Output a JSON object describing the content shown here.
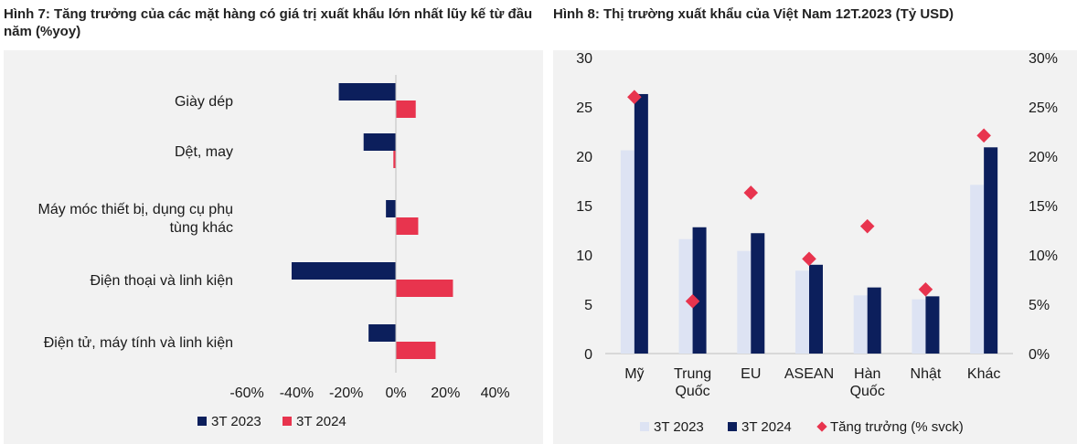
{
  "figure1": {
    "title": "Hình 7: Tăng trưởng của các mặt hàng có giá trị xuất khẩu lớn nhất lũy kế từ đầu năm (%yoy)",
    "chart_data": {
      "type": "bar",
      "orientation": "horizontal",
      "categories": [
        [
          "Giày dép"
        ],
        [
          "Dệt, may"
        ],
        [
          "Máy móc thiết bị, dụng cụ phụ",
          "tùng khác"
        ],
        [
          "Điện thoại và linh kiện"
        ],
        [
          "Điện tử, máy tính và linh kiện"
        ]
      ],
      "series": [
        {
          "name": "3T 2023",
          "color": "#0c1f5c",
          "values": [
            -23,
            -13,
            -4,
            -42,
            -11
          ]
        },
        {
          "name": "3T 2024",
          "color": "#e8344e",
          "values": [
            8,
            -1,
            9,
            23,
            16
          ]
        }
      ],
      "xlim": [
        -60,
        40
      ],
      "xticks": [
        -60,
        -40,
        -20,
        0,
        20,
        40
      ],
      "xtick_labels": [
        "-60%",
        "-40%",
        "-20%",
        "0%",
        "20%",
        "40%"
      ],
      "legend_position": "bottom-left"
    }
  },
  "figure2": {
    "title": "Hình 8: Thị trường xuất khẩu của Việt Nam 12T.2023 (Tỷ USD)",
    "chart_data": {
      "type": "bar",
      "categories": [
        [
          "Mỹ"
        ],
        [
          "Trung",
          "Quốc"
        ],
        [
          "EU"
        ],
        [
          "ASEAN"
        ],
        [
          "Hàn",
          "Quốc"
        ],
        [
          "Nhật"
        ],
        [
          "Khác"
        ]
      ],
      "series": [
        {
          "name": "3T 2023",
          "color": "#dde3f3",
          "values": [
            20.6,
            11.6,
            10.4,
            8.4,
            5.9,
            5.5,
            17.1
          ]
        },
        {
          "name": "3T 2024",
          "color": "#0c1f5c",
          "values": [
            26.3,
            12.8,
            12.2,
            9.0,
            6.7,
            5.8,
            20.9
          ]
        },
        {
          "name": "Tăng trưởng (% svck)",
          "color": "#e8344e",
          "type": "scatter",
          "axis": "right",
          "values": [
            26.0,
            5.3,
            16.3,
            9.6,
            12.9,
            6.5,
            22.1
          ]
        }
      ],
      "ylim": [
        0,
        30
      ],
      "yticks": [
        0,
        5,
        10,
        15,
        20,
        25,
        30
      ],
      "ytick_labels": [
        "0",
        "5",
        "10",
        "15",
        "20",
        "25",
        "30"
      ],
      "y2lim": [
        0,
        30
      ],
      "y2ticks": [
        0,
        5,
        10,
        15,
        20,
        25,
        30
      ],
      "y2tick_labels": [
        "0%",
        "5%",
        "10%",
        "15%",
        "20%",
        "25%",
        "30%"
      ],
      "legend_position": "bottom"
    }
  }
}
